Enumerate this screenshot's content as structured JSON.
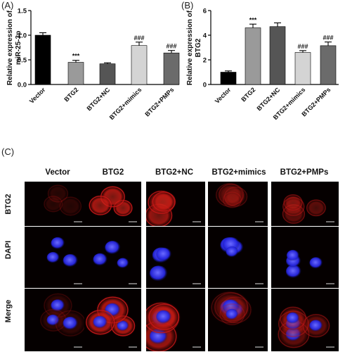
{
  "panel_labels": [
    "(A)",
    "(B)",
    "(C)"
  ],
  "chart_data": [
    {
      "type": "bar",
      "title": "",
      "xlabel": "",
      "ylabel": "Relative expression of miR-25-3p",
      "ylabel_lines": [
        "Relative expression of",
        "miR-25-3p"
      ],
      "categories": [
        "Vector",
        "BTG2",
        "BTG2+NC",
        "BTG2+mimics",
        "BTG2+PMPs"
      ],
      "values": [
        1.0,
        0.45,
        0.42,
        0.79,
        0.64
      ],
      "errors": [
        0.05,
        0.04,
        0.02,
        0.07,
        0.05
      ],
      "significance": [
        "",
        "***",
        "",
        "###",
        "###"
      ],
      "bar_colors": [
        "#000000",
        "#9a9a9a",
        "#555555",
        "#d4d4d4",
        "#6b6b6b"
      ],
      "ylim": [
        0,
        1.5
      ],
      "yticks": [
        0,
        0.5,
        1.0,
        1.5
      ],
      "ytick_labels": [
        "0.0",
        "0.5",
        "1.0",
        "1.5"
      ],
      "grid": false
    },
    {
      "type": "bar",
      "title": "",
      "xlabel": "",
      "ylabel": "Relative expression of BTG2",
      "ylabel_lines": [
        "Relative expression of",
        "BTG2"
      ],
      "categories": [
        "Vector",
        "BTG2",
        "BTG2+NC",
        "BTG2+mimics",
        "BTG2+PMPs"
      ],
      "values": [
        1.0,
        4.6,
        4.7,
        2.6,
        3.15
      ],
      "errors": [
        0.1,
        0.3,
        0.3,
        0.15,
        0.3
      ],
      "significance": [
        "",
        "***",
        "",
        "###",
        "###"
      ],
      "bar_colors": [
        "#000000",
        "#9a9a9a",
        "#555555",
        "#d4d4d4",
        "#6b6b6b"
      ],
      "ylim": [
        0,
        6
      ],
      "yticks": [
        0,
        2,
        4,
        6
      ],
      "ytick_labels": [
        "0",
        "2",
        "4",
        "6"
      ],
      "grid": false
    }
  ],
  "microscopy": {
    "columns": [
      "Vector",
      "BTG2",
      "BTG2+NC",
      "BTG2+mimics",
      "BTG2+PMPs"
    ],
    "rows": [
      "BTG2",
      "DAPI",
      "Merge"
    ],
    "channel_colors": {
      "BTG2": "#c81818",
      "DAPI": "#2a2ae8",
      "background": "#050000"
    }
  }
}
